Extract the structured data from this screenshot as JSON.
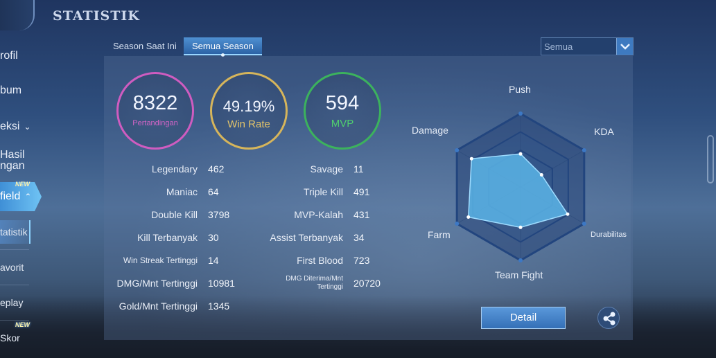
{
  "header": {
    "title": "STATISTIK",
    "back_icon": "back-arrow-icon"
  },
  "sidebar": {
    "items": [
      {
        "label": "rofil"
      },
      {
        "label": "bum"
      },
      {
        "label": "eksi"
      },
      {
        "label_line1": "Hasil",
        "label_line2": "ngan"
      },
      {
        "label": "field",
        "badge": "NEW"
      }
    ],
    "subitems": [
      {
        "label": "tatistik"
      },
      {
        "label": "avorit"
      },
      {
        "label": "eplay"
      },
      {
        "label": "Skor",
        "badge": "NEW"
      }
    ]
  },
  "tabs": [
    {
      "label": "Season Saat Ini"
    },
    {
      "label": "Semua Season"
    }
  ],
  "filter": {
    "selected": "Semua"
  },
  "summary": {
    "matches": {
      "value": "8322",
      "label": "Pertandingan",
      "color": "#d264c6"
    },
    "winrate": {
      "value": "49.19%",
      "label": "Win Rate",
      "color": "#d9b45a"
    },
    "mvp": {
      "value": "594",
      "label": "MVP",
      "color": "#3db75c"
    }
  },
  "stats_left": [
    {
      "label": "Legendary",
      "value": "462"
    },
    {
      "label": "Maniac",
      "value": "64"
    },
    {
      "label": "Double Kill",
      "value": "3798"
    },
    {
      "label": "Kill Terbanyak",
      "value": "30"
    },
    {
      "label": "Win Streak Tertinggi",
      "value": "14"
    },
    {
      "label": "DMG/Mnt Tertinggi",
      "value": "10981"
    },
    {
      "label": "Gold/Mnt Tertinggi",
      "value": "1345"
    }
  ],
  "stats_right": [
    {
      "label": "Savage",
      "value": "11"
    },
    {
      "label": "Triple Kill",
      "value": "491"
    },
    {
      "label": "MVP-Kalah",
      "value": "431"
    },
    {
      "label": "Assist Terbanyak",
      "value": "34"
    },
    {
      "label": "First Blood",
      "value": "723"
    },
    {
      "label": "DMG Diterima/Mnt Tertinggi",
      "value": "20720"
    }
  ],
  "radar": {
    "axes": [
      "Push",
      "KDA",
      "Durabilitas",
      "Team Fight",
      "Farm",
      "Damage"
    ],
    "values": [
      0.45,
      0.33,
      0.74,
      0.55,
      0.82,
      0.77
    ],
    "fill_color": "#5ab4e6"
  },
  "actions": {
    "detail_label": "Detail",
    "share_icon": "share-icon"
  }
}
